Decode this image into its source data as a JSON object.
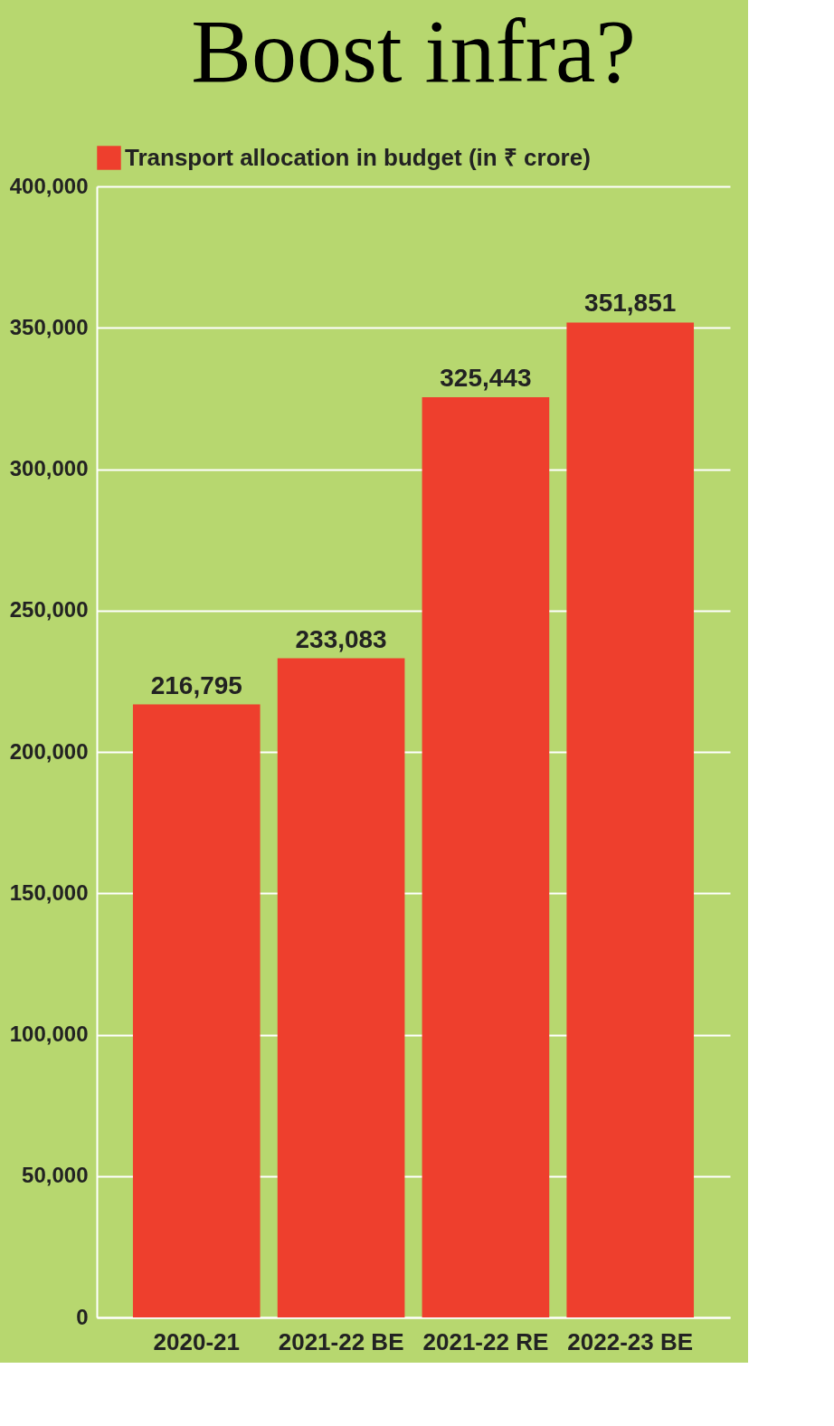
{
  "chart_data": {
    "type": "bar",
    "title": "Boost infra?",
    "categories": [
      "2020-21",
      "2021-22 BE",
      "2021-22 RE",
      "2022-23 BE"
    ],
    "series": [
      {
        "name": "Transport allocation in budget  (in ₹ crore)",
        "color": "#ee3f2d",
        "values": [
          216795,
          233083,
          325443,
          351851
        ],
        "value_labels": [
          "216,795",
          "233,083",
          "325,443",
          "351,851"
        ]
      }
    ],
    "ylim": [
      0,
      400000
    ],
    "yticks": [
      0,
      {
        "value": 50000,
        "label": "50,000"
      },
      {
        "value": 100000,
        "label": "100,000"
      },
      {
        "value": 150000,
        "label": "150,000"
      },
      {
        "value": 200000,
        "label": "200,000"
      },
      {
        "value": 250000,
        "label": "250,000"
      },
      {
        "value": 300000,
        "label": "300,000"
      },
      {
        "value": 350000,
        "label": "350,000"
      },
      {
        "value": 400000,
        "label": "400,000"
      }
    ],
    "grid": "y",
    "legend": "top"
  }
}
